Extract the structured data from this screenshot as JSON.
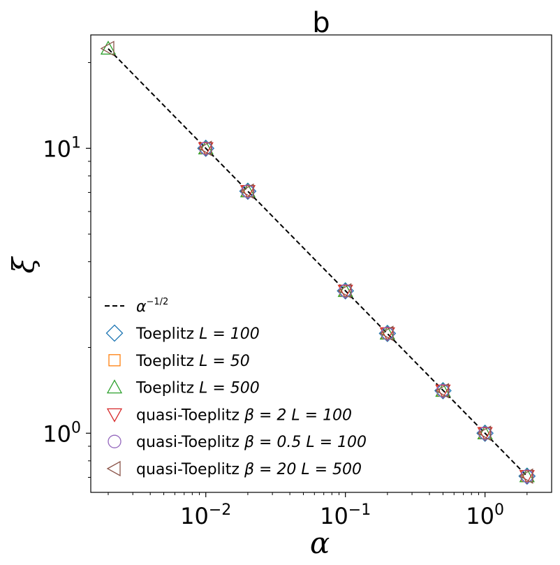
{
  "chart_data": {
    "type": "scatter",
    "title": "b",
    "xlabel": "α",
    "ylabel": "ξ",
    "xscale": "log",
    "yscale": "log",
    "xlim": [
      0.0015,
      3.0
    ],
    "ylim": [
      0.62,
      25.0
    ],
    "grid": false,
    "legend_position": "lower-left",
    "x_ticks": [
      {
        "value": 0.01,
        "base": "10",
        "exp": "−2"
      },
      {
        "value": 0.1,
        "base": "10",
        "exp": "−1"
      },
      {
        "value": 1,
        "base": "10",
        "exp": "0"
      }
    ],
    "y_ticks": [
      {
        "value": 1,
        "base": "10",
        "exp": "0"
      },
      {
        "value": 10,
        "base": "10",
        "exp": "1"
      }
    ],
    "reference_line": {
      "name": "α^(−1/2)",
      "label_base": "α",
      "label_exp_num": "1",
      "label_exp_den": "2",
      "formula": "alpha^-0.5",
      "x_range": [
        0.002,
        2
      ],
      "color": "#000000",
      "style": "dashed"
    },
    "series": [
      {
        "name": "Toeplitz L = 100",
        "label_text": "Toeplitz ",
        "label_math": "L = 100",
        "marker": "diamond",
        "color": "#1f77b4",
        "x": [
          0.01,
          0.02,
          0.1,
          0.2,
          0.5,
          1,
          2
        ],
        "y": [
          10.0,
          7.07,
          3.16,
          2.24,
          1.41,
          1.0,
          0.707
        ]
      },
      {
        "name": "Toeplitz L = 50",
        "label_text": "Toeplitz ",
        "label_math": "L = 50",
        "marker": "square",
        "color": "#ff7f0e",
        "x": [
          0.01,
          0.02,
          0.1,
          0.2,
          0.5,
          1,
          2
        ],
        "y": [
          10.0,
          7.07,
          3.16,
          2.24,
          1.41,
          1.0,
          0.707
        ]
      },
      {
        "name": "Toeplitz L = 500",
        "label_text": "Toeplitz ",
        "label_math": "L = 500",
        "marker": "triangle-up",
        "color": "#2ca02c",
        "x": [
          0.002,
          0.01,
          0.02,
          0.1,
          0.2,
          0.5,
          1,
          2
        ],
        "y": [
          22.4,
          10.0,
          7.07,
          3.16,
          2.24,
          1.41,
          1.0,
          0.707
        ]
      },
      {
        "name": "quasi-Toeplitz β = 2 L = 100",
        "label_text": "quasi-Toeplitz ",
        "label_math": "β = 2 L = 100",
        "marker": "triangle-down",
        "color": "#d62728",
        "x": [
          0.01,
          0.02,
          0.1,
          0.2,
          0.5,
          1,
          2
        ],
        "y": [
          10.0,
          7.07,
          3.16,
          2.24,
          1.41,
          1.0,
          0.707
        ]
      },
      {
        "name": "quasi-Toeplitz β = 0.5 L = 100",
        "label_text": "quasi-Toeplitz ",
        "label_math": "β = 0.5 L = 100",
        "marker": "circle",
        "color": "#9467bd",
        "x": [
          0.01,
          0.02,
          0.1,
          0.2,
          0.5,
          1,
          2
        ],
        "y": [
          10.0,
          7.07,
          3.16,
          2.24,
          1.41,
          1.0,
          0.707
        ]
      },
      {
        "name": "quasi-Toeplitz β = 20 L = 500",
        "label_text": "quasi-Toeplitz ",
        "label_math": "β = 20 L = 500",
        "marker": "triangle-left",
        "color": "#8c564b",
        "x": [
          0.002,
          0.01,
          0.02,
          0.1,
          0.2,
          0.5,
          1,
          2
        ],
        "y": [
          22.4,
          10.0,
          7.07,
          3.16,
          2.24,
          1.41,
          1.0,
          0.707
        ]
      }
    ]
  }
}
